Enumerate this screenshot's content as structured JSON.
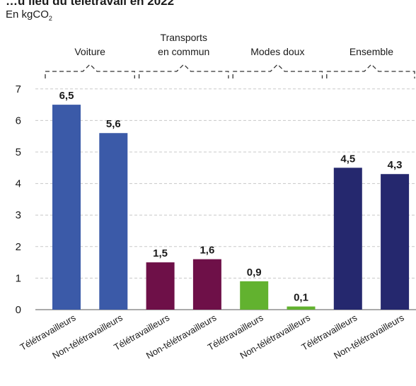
{
  "header": {
    "title": "…u lieu du télétravail en 2022",
    "subtitle_prefix": "En kgCO",
    "subtitle_sub": "2"
  },
  "chart_data": {
    "type": "bar",
    "title": "…u lieu du télétravail en 2022",
    "ylabel": "En kgCO2",
    "ylim": [
      0,
      7
    ],
    "yticks": [
      0,
      1,
      2,
      3,
      4,
      5,
      6,
      7
    ],
    "grid": true,
    "groups": [
      {
        "label": [
          "Voiture"
        ],
        "color": "#3b5aa8"
      },
      {
        "label": [
          "Transports",
          "en commun"
        ],
        "color": "#6e1048"
      },
      {
        "label": [
          "Modes doux"
        ],
        "color": "#62b22f"
      },
      {
        "label": [
          "Ensemble"
        ],
        "color": "#25286e"
      }
    ],
    "categories": [
      "Télétravailleurs",
      "Non-télétravailleurs",
      "Télétravailleurs",
      "Non-télétravailleurs",
      "Télétravailleurs",
      "Non-télétravailleurs",
      "Télétravailleurs",
      "Non-télétravailleurs"
    ],
    "values": [
      6.5,
      5.6,
      1.5,
      1.6,
      0.9,
      0.1,
      4.5,
      4.3
    ],
    "value_labels": [
      "6,5",
      "5,6",
      "1,5",
      "1,6",
      "0,9",
      "0,1",
      "4,5",
      "4,3"
    ],
    "bar_group": [
      0,
      0,
      1,
      1,
      2,
      2,
      3,
      3
    ]
  }
}
